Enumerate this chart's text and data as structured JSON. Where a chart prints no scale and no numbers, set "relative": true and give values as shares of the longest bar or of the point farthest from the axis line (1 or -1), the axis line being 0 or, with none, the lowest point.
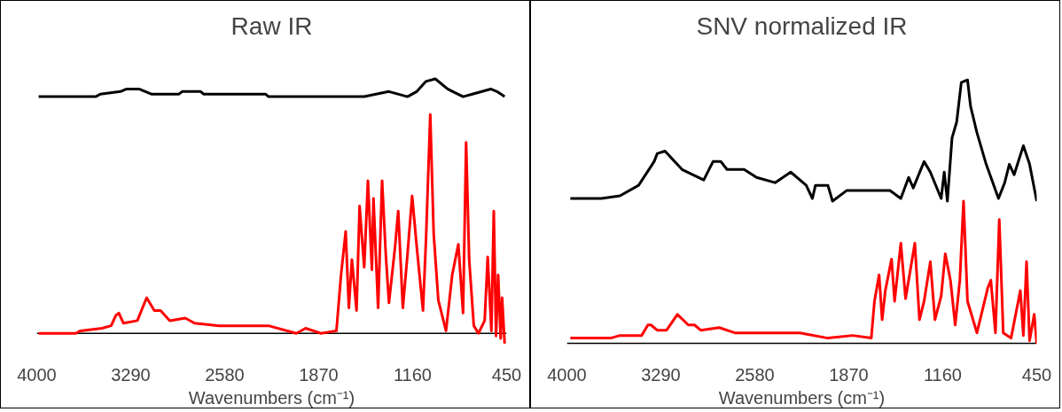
{
  "chart_data": [
    {
      "type": "line",
      "title": "Raw IR",
      "xlabel": "Wavenumbers (cm⁻¹)",
      "relative": true,
      "xlim": [
        4000,
        450
      ],
      "xticks": [
        4000,
        3290,
        2580,
        1870,
        1160,
        450
      ],
      "grid": false,
      "line_style": "solid",
      "marker": "none",
      "series": [
        {
          "color": "#000000",
          "x": [
            3986,
            3555,
            3520,
            3368,
            3321,
            3228,
            3135,
            2925,
            2902,
            2762,
            2738,
            2272,
            2249,
            1736,
            1689,
            1642,
            1526,
            1339,
            1199,
            1129,
            1059,
            989,
            896,
            779,
            709,
            570,
            523,
            465
          ],
          "values": [
            0.93,
            0.93,
            0.94,
            0.95,
            0.96,
            0.96,
            0.94,
            0.94,
            0.95,
            0.95,
            0.94,
            0.94,
            0.93,
            0.93,
            0.93,
            0.93,
            0.93,
            0.95,
            0.93,
            0.95,
            0.99,
            1.0,
            0.96,
            0.93,
            0.94,
            0.96,
            0.95,
            0.93
          ]
        },
        {
          "color": "#ff0000",
          "x": [
            3986,
            3706,
            3671,
            3508,
            3438,
            3403,
            3380,
            3345,
            3240,
            3170,
            3112,
            3065,
            2995,
            2878,
            2808,
            2622,
            2249,
            2039,
            1969,
            1852,
            1736,
            1701,
            1666,
            1642,
            1619,
            1584,
            1561,
            1526,
            1498,
            1468,
            1456,
            1421,
            1391,
            1363,
            1339,
            1293,
            1269,
            1234,
            1199,
            1164,
            1129,
            1082,
            1059,
            1027,
            1001,
            966,
            908,
            861,
            815,
            779,
            756,
            733,
            698,
            663,
            616,
            593,
            565,
            547,
            530,
            514,
            495,
            484,
            465
          ],
          "values": [
            0,
            0,
            0.01,
            0.02,
            0.03,
            0.07,
            0.08,
            0.04,
            0.05,
            0.14,
            0.09,
            0.09,
            0.05,
            0.06,
            0.04,
            0.03,
            0.03,
            0.0,
            0.02,
            0,
            0.01,
            0.23,
            0.4,
            0.1,
            0.29,
            0.09,
            0.5,
            0.26,
            0.6,
            0.25,
            0.53,
            0.1,
            0.6,
            0.31,
            0.12,
            0.34,
            0.48,
            0.1,
            0.31,
            0.54,
            0.34,
            0.09,
            0.37,
            0.86,
            0.39,
            0.13,
            0.01,
            0.23,
            0.35,
            0.08,
            0.75,
            0.29,
            0.03,
            0,
            0.05,
            0.3,
            0.01,
            0.48,
            -0.01,
            0.23,
            -0.02,
            0.14,
            -0.04
          ]
        }
      ]
    },
    {
      "type": "line",
      "title": "SNV normalized IR",
      "xlabel": "Wavenumbers (cm⁻¹)",
      "relative": true,
      "xlim": [
        4000,
        450
      ],
      "xticks": [
        4000,
        3290,
        2580,
        1870,
        1160,
        450
      ],
      "grid": false,
      "line_style": "solid",
      "marker": "none",
      "series": [
        {
          "color": "#000000",
          "x": [
            3974,
            3740,
            3599,
            3458,
            3341,
            3318,
            3259,
            3130,
            2966,
            2896,
            2837,
            2790,
            2661,
            2567,
            2427,
            2309,
            2192,
            2145,
            2122,
            2028,
            1993,
            1887,
            1723,
            1559,
            1477,
            1418,
            1383,
            1301,
            1254,
            1172,
            1149,
            1125,
            1090,
            1055,
            1020,
            973,
            950,
            902,
            832,
            739,
            692,
            657,
            621,
            551,
            504,
            450
          ],
          "values": [
            0.55,
            0.55,
            0.56,
            0.6,
            0.69,
            0.72,
            0.73,
            0.66,
            0.62,
            0.69,
            0.69,
            0.66,
            0.66,
            0.63,
            0.61,
            0.65,
            0.6,
            0.55,
            0.6,
            0.6,
            0.54,
            0.58,
            0.58,
            0.58,
            0.55,
            0.63,
            0.59,
            0.69,
            0.65,
            0.55,
            0.65,
            0.54,
            0.78,
            0.84,
            0.99,
            1.0,
            0.9,
            0.8,
            0.68,
            0.55,
            0.61,
            0.68,
            0.64,
            0.75,
            0.68,
            0.54
          ]
        },
        {
          "color": "#ff0000",
          "x": [
            3974,
            3669,
            3599,
            3435,
            3388,
            3365,
            3318,
            3247,
            3165,
            3083,
            3036,
            2989,
            2849,
            2731,
            2239,
            2028,
            1840,
            1700,
            1676,
            1641,
            1618,
            1594,
            1547,
            1524,
            1477,
            1441,
            1371,
            1336,
            1301,
            1254,
            1219,
            1172,
            1141,
            1102,
            1066,
            1031,
            1003,
            973,
            902,
            820,
            797,
            762,
            733,
            703,
            644,
            574,
            551,
            527,
            504,
            469,
            450
          ],
          "values": [
            0.02,
            0.02,
            0.03,
            0.03,
            0.07,
            0.07,
            0.05,
            0.05,
            0.11,
            0.07,
            0.07,
            0.05,
            0.06,
            0.04,
            0.04,
            0.02,
            0.03,
            0.02,
            0.16,
            0.26,
            0.09,
            0.2,
            0.32,
            0.16,
            0.38,
            0.17,
            0.38,
            0.09,
            0.16,
            0.31,
            0.09,
            0.18,
            0.34,
            0.24,
            0.07,
            0.24,
            0.54,
            0.16,
            0.04,
            0.21,
            0.24,
            0.04,
            0.47,
            0.04,
            0.02,
            0.2,
            0.03,
            0.31,
            0.01,
            0.11,
            0.0
          ]
        }
      ]
    }
  ]
}
